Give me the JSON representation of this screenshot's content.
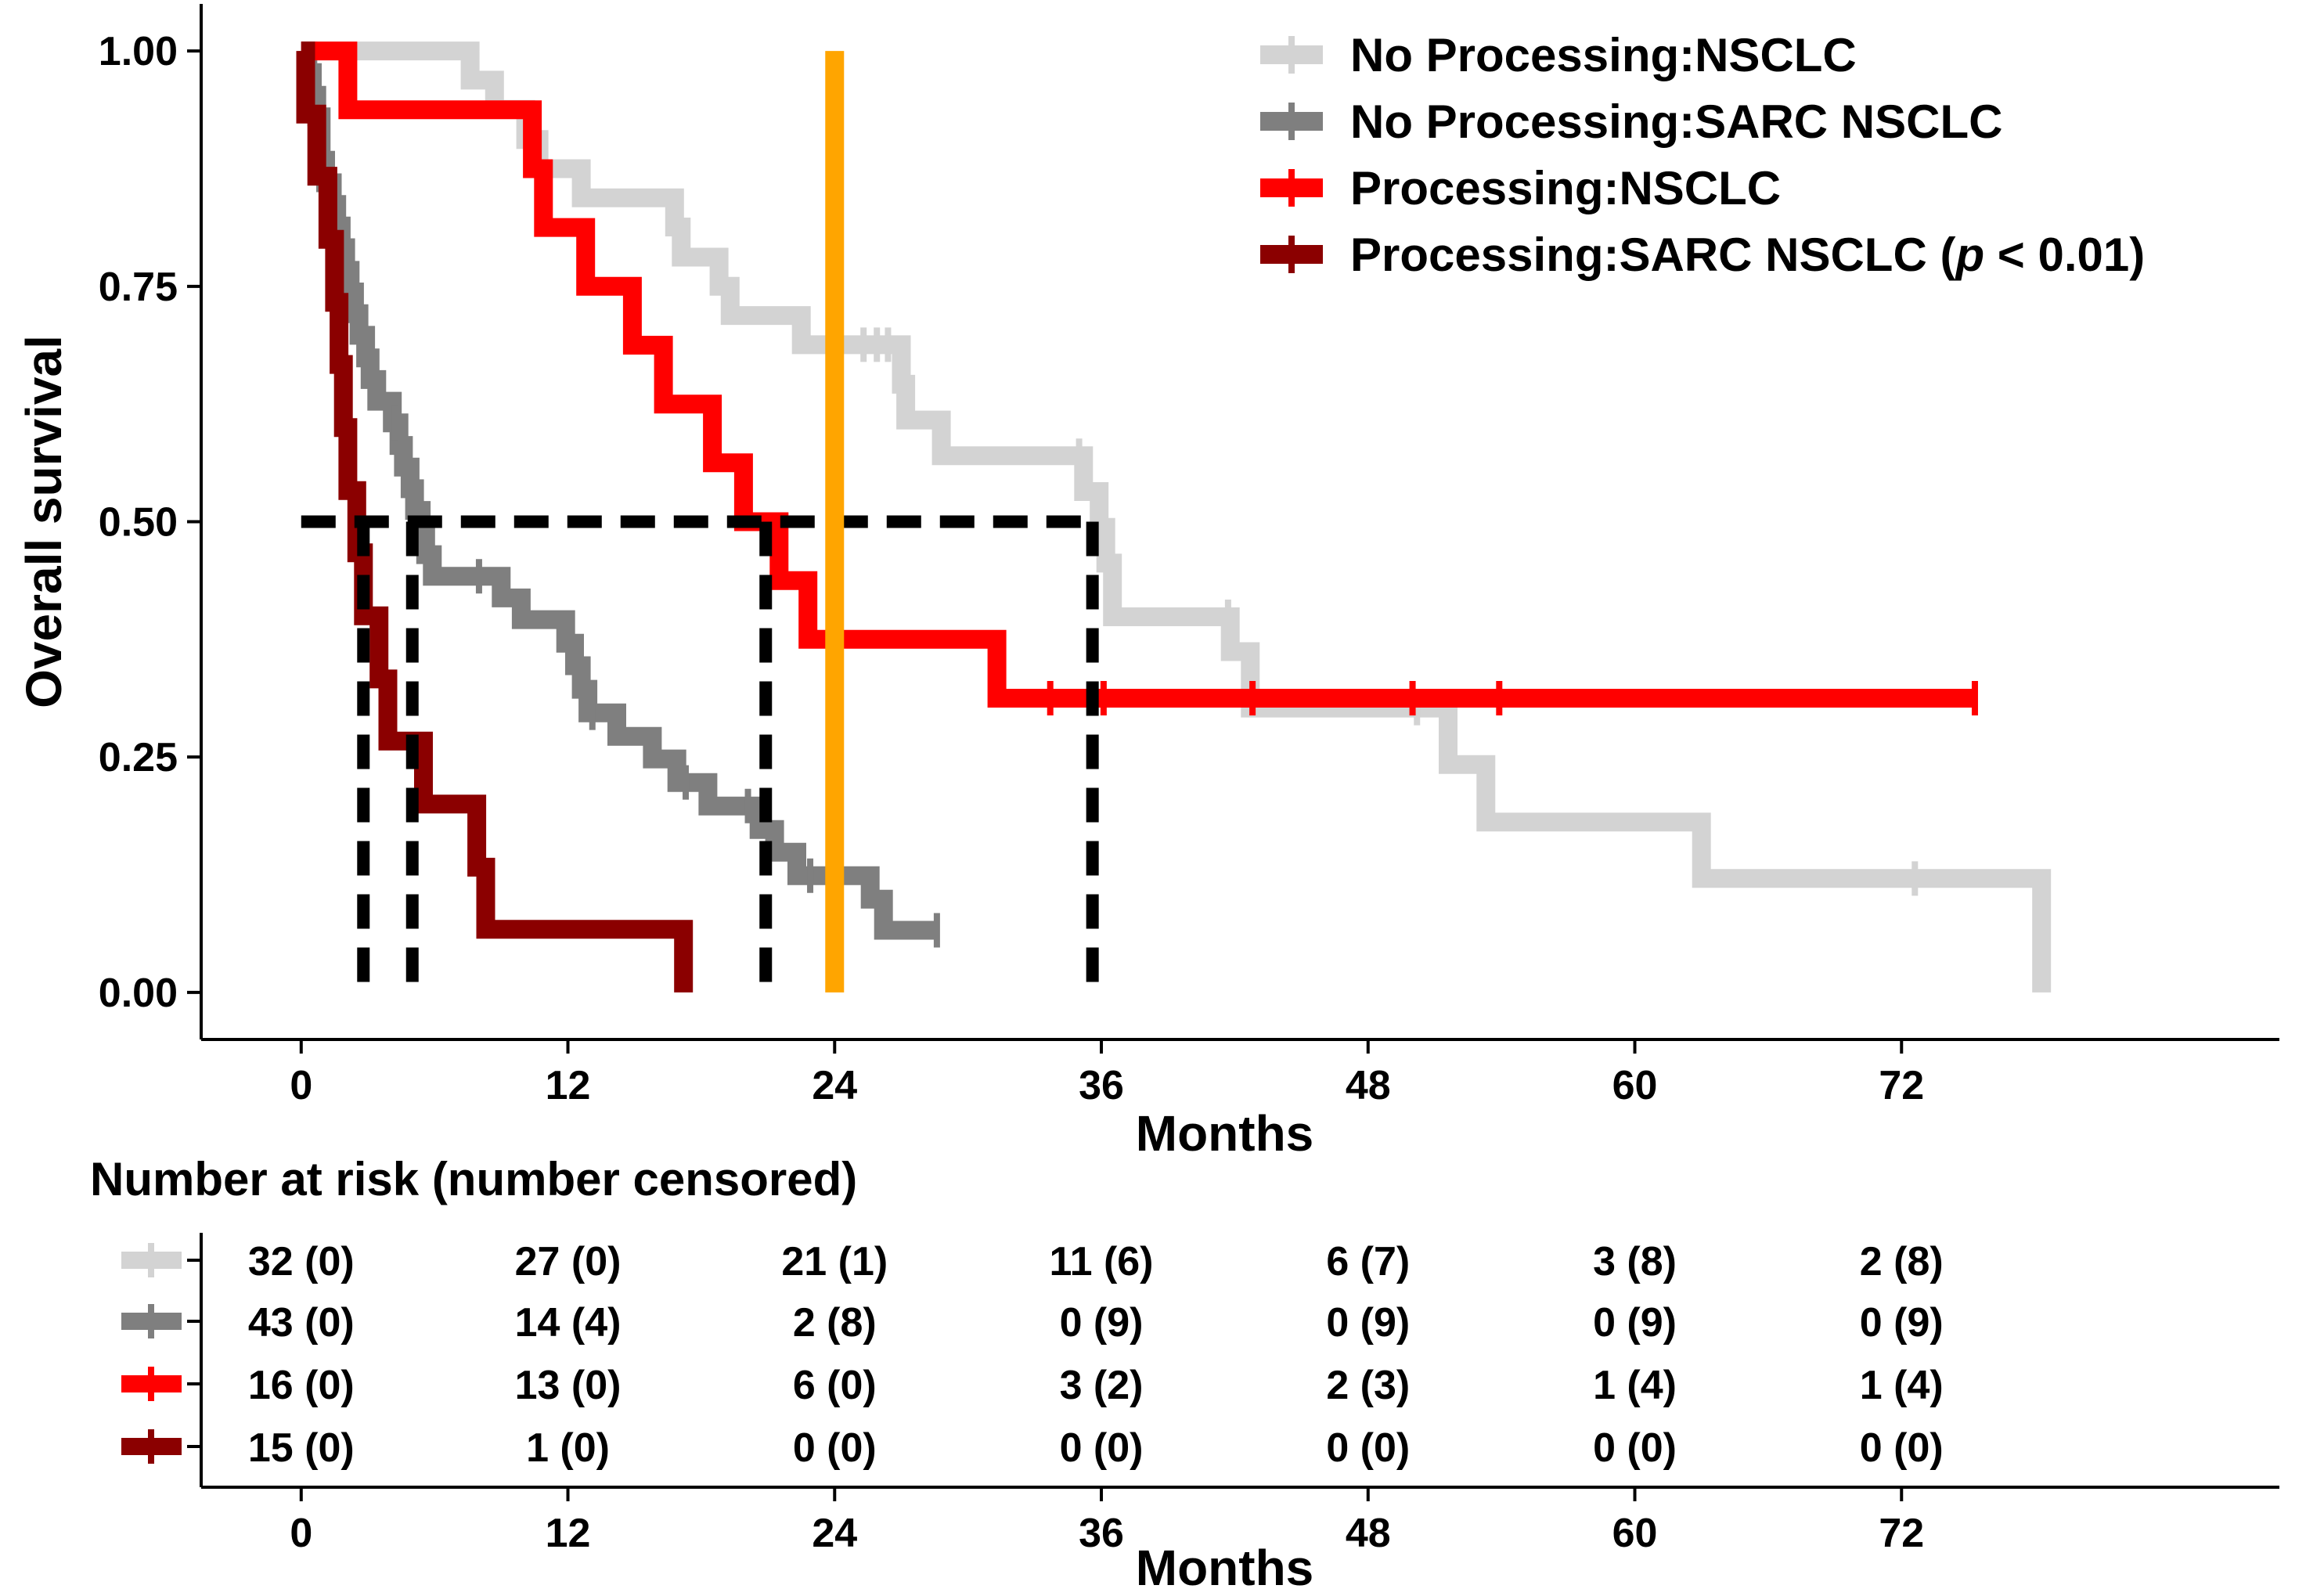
{
  "chart_data": {
    "type": "line",
    "subtype": "kaplan-meier",
    "xlabel": "Months",
    "ylabel": "Overall survival",
    "xlim": [
      -4.5,
      89
    ],
    "ylim": [
      -0.05,
      1.05
    ],
    "x_ticks": [
      0,
      12,
      24,
      36,
      48,
      60,
      72
    ],
    "x_tick_labels": [
      "0",
      "12",
      "24",
      "36",
      "48",
      "60",
      "72"
    ],
    "y_ticks": [
      0,
      0.25,
      0.5,
      0.75,
      1.0
    ],
    "y_tick_labels": [
      "0.00",
      "0.25",
      "0.50",
      "0.75",
      "1.00"
    ],
    "grid": false,
    "legend_position": "top-right",
    "series": [
      {
        "name": "No Processing:NSCLC",
        "legend_label": "No Processing:NSCLC",
        "color": "#d3d3d3",
        "steps": [
          [
            0,
            1.0
          ],
          [
            7.6,
            0.969
          ],
          [
            8.7,
            0.938
          ],
          [
            10.1,
            0.906
          ],
          [
            10.7,
            0.875
          ],
          [
            12.6,
            0.844
          ],
          [
            16.8,
            0.813
          ],
          [
            17.1,
            0.781
          ],
          [
            18.8,
            0.75
          ],
          [
            19.3,
            0.719
          ],
          [
            22.5,
            0.688
          ],
          [
            27.0,
            0.646
          ],
          [
            27.2,
            0.608
          ],
          [
            28.8,
            0.57
          ],
          [
            35.2,
            0.532
          ],
          [
            35.9,
            0.494
          ],
          [
            36.2,
            0.456
          ],
          [
            36.5,
            0.399
          ],
          [
            41.8,
            0.362
          ],
          [
            42.7,
            0.302
          ],
          [
            51.6,
            0.242
          ],
          [
            53.3,
            0.181
          ],
          [
            63.0,
            0.121
          ],
          [
            78.3,
            0.0
          ]
        ],
        "end_time": 78.3,
        "censor_times": [
          25.3,
          25.9,
          26.4,
          27.1,
          35.0,
          41.7,
          50.2,
          72.6
        ]
      },
      {
        "name": "No Processing:SARC NSCLC",
        "legend_label": "No Processing:SARC NSCLC",
        "color": "#7f7f7f",
        "steps": [
          [
            0,
            1.0
          ],
          [
            0.3,
            0.977
          ],
          [
            0.5,
            0.953
          ],
          [
            0.7,
            0.93
          ],
          [
            0.9,
            0.884
          ],
          [
            1.1,
            0.86
          ],
          [
            1.4,
            0.837
          ],
          [
            1.6,
            0.814
          ],
          [
            1.8,
            0.791
          ],
          [
            2.0,
            0.767
          ],
          [
            2.2,
            0.744
          ],
          [
            2.4,
            0.721
          ],
          [
            2.6,
            0.698
          ],
          [
            2.9,
            0.674
          ],
          [
            3.1,
            0.651
          ],
          [
            3.4,
            0.628
          ],
          [
            4.1,
            0.605
          ],
          [
            4.4,
            0.581
          ],
          [
            4.6,
            0.558
          ],
          [
            4.9,
            0.535
          ],
          [
            5.1,
            0.512
          ],
          [
            5.4,
            0.488
          ],
          [
            5.6,
            0.465
          ],
          [
            5.9,
            0.442
          ],
          [
            9.0,
            0.419
          ],
          [
            9.9,
            0.396
          ],
          [
            11.9,
            0.371
          ],
          [
            12.3,
            0.347
          ],
          [
            12.6,
            0.322
          ],
          [
            12.9,
            0.297
          ],
          [
            14.2,
            0.272
          ],
          [
            15.8,
            0.248
          ],
          [
            16.9,
            0.223
          ],
          [
            18.3,
            0.198
          ],
          [
            20.6,
            0.173
          ],
          [
            21.3,
            0.149
          ],
          [
            22.3,
            0.124
          ],
          [
            25.6,
            0.099
          ],
          [
            26.2,
            0.066
          ]
        ],
        "end_time": 28.6,
        "censor_times": [
          0.6,
          1.2,
          4.2,
          8.0,
          12.1,
          13.1,
          17.3,
          20.1,
          22.9,
          28.6
        ]
      },
      {
        "name": "Processing:NSCLC",
        "legend_label": "Processing:NSCLC",
        "color": "#ff0000",
        "steps": [
          [
            0,
            1.0
          ],
          [
            2.1,
            0.9375
          ],
          [
            10.4,
            0.875
          ],
          [
            10.9,
            0.8125
          ],
          [
            12.8,
            0.75
          ],
          [
            14.9,
            0.6875
          ],
          [
            16.3,
            0.625
          ],
          [
            18.5,
            0.5625
          ],
          [
            19.9,
            0.5
          ],
          [
            21.5,
            0.4375
          ],
          [
            22.8,
            0.375
          ],
          [
            31.3,
            0.3125
          ]
        ],
        "end_time": 75.3,
        "censor_times": [
          33.7,
          36.1,
          42.8,
          50.0,
          53.9,
          75.3
        ]
      },
      {
        "name": "Processing:SARC NSCLC",
        "legend_label": "Processing:SARC NSCLC",
        "p_value_label": "(p < 0.01)",
        "color": "#8b0000",
        "steps": [
          [
            0,
            1.0
          ],
          [
            0.2,
            0.933
          ],
          [
            0.7,
            0.867
          ],
          [
            1.2,
            0.8
          ],
          [
            1.5,
            0.733
          ],
          [
            1.7,
            0.667
          ],
          [
            1.9,
            0.6
          ],
          [
            2.1,
            0.533
          ],
          [
            2.5,
            0.467
          ],
          [
            2.8,
            0.4
          ],
          [
            3.5,
            0.333
          ],
          [
            3.9,
            0.267
          ],
          [
            5.5,
            0.2
          ],
          [
            7.9,
            0.133
          ],
          [
            8.3,
            0.067
          ],
          [
            17.2,
            0.0
          ]
        ],
        "end_time": 17.2,
        "censor_times": []
      }
    ],
    "reference_lines": {
      "median_y": 0.5,
      "median_times": [
        2.8,
        5.0,
        20.9,
        35.6
      ],
      "highlight_month": 24.0,
      "highlight_color": "#ffa500"
    },
    "risk_table": {
      "title": "Number at risk (number censored)",
      "xlabel": "Months",
      "time_points": [
        0,
        12,
        24,
        36,
        48,
        60,
        72
      ],
      "rows": [
        {
          "series": "No Processing:NSCLC",
          "color": "#d3d3d3",
          "cells": [
            "32 (0)",
            "27 (0)",
            "21 (1)",
            "11 (6)",
            "6 (7)",
            "3 (8)",
            "2 (8)"
          ]
        },
        {
          "series": "No Processing:SARC NSCLC",
          "color": "#7f7f7f",
          "cells": [
            "43 (0)",
            "14 (4)",
            "2 (8)",
            "0 (9)",
            "0 (9)",
            "0 (9)",
            "0 (9)"
          ]
        },
        {
          "series": "Processing:NSCLC",
          "color": "#ff0000",
          "cells": [
            "16 (0)",
            "13 (0)",
            "6 (0)",
            "3 (2)",
            "2 (3)",
            "1 (4)",
            "1 (4)"
          ]
        },
        {
          "series": "Processing:SARC NSCLC",
          "color": "#8b0000",
          "cells": [
            "15 (0)",
            "1 (0)",
            "0 (0)",
            "0 (0)",
            "0 (0)",
            "0 (0)",
            "0 (0)"
          ]
        }
      ]
    }
  }
}
